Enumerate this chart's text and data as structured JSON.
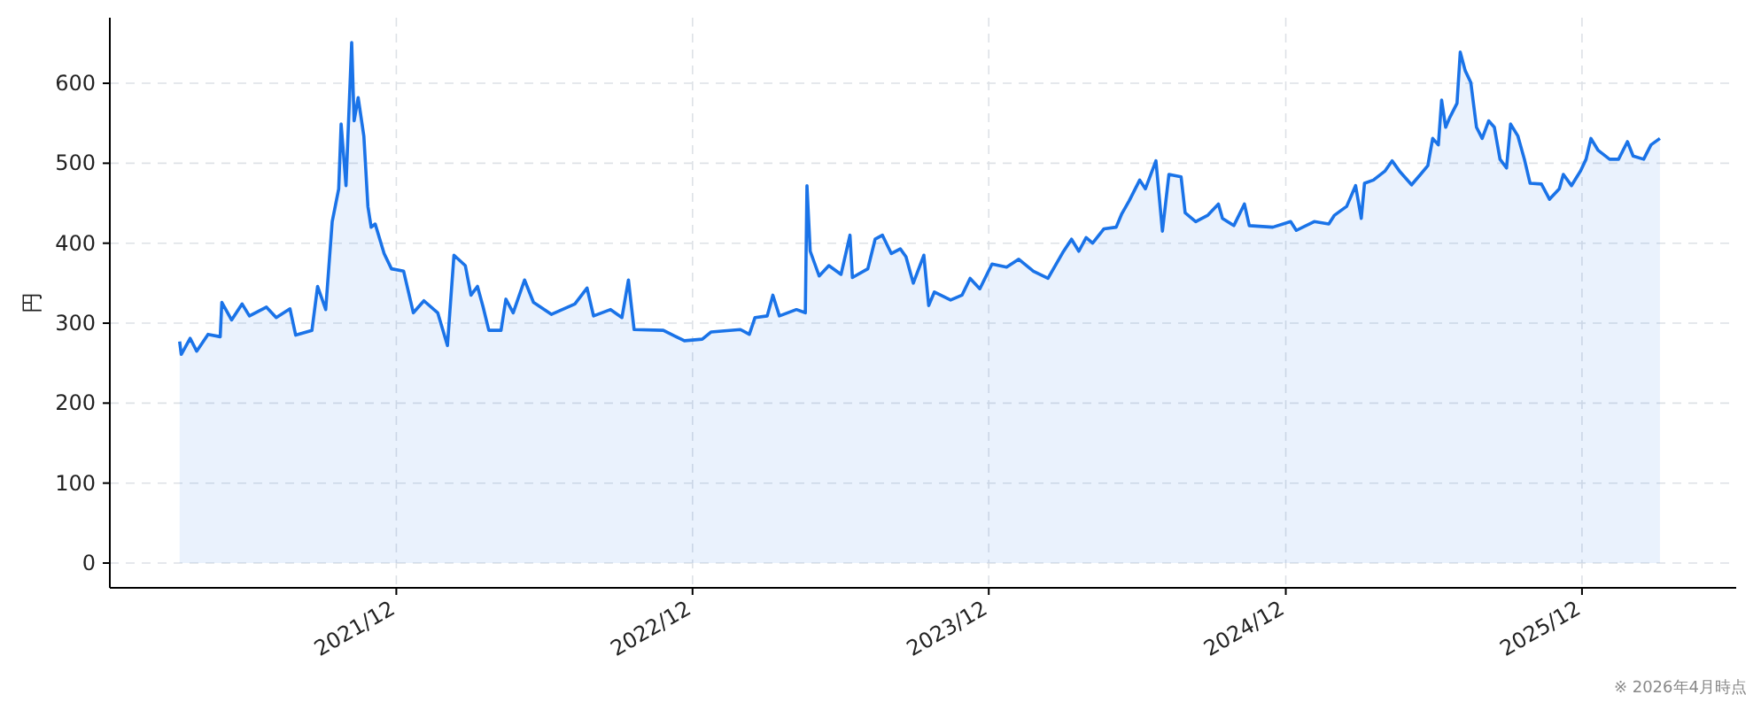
{
  "chart_data": {
    "type": "area",
    "ylabel": "円",
    "annotations": [
      "※ 2026年4月時点"
    ],
    "x": [
      "2021-03-09",
      "2021-03-11",
      "2021-03-22",
      "2021-03-30",
      "2021-04-13",
      "2021-04-28",
      "2021-04-30",
      "2021-05-12",
      "2021-05-25",
      "2021-06-03",
      "2021-06-24",
      "2021-07-06",
      "2021-07-23",
      "2021-07-30",
      "2021-08-19",
      "2021-08-26",
      "2021-09-05",
      "2021-09-13",
      "2021-09-21",
      "2021-09-24",
      "2021-09-30",
      "2021-10-07",
      "2021-10-10",
      "2021-10-15",
      "2021-10-22",
      "2021-10-27",
      "2021-10-31",
      "2021-11-05",
      "2021-11-16",
      "2021-11-25",
      "2021-12-10",
      "2021-12-22",
      "2022-01-04",
      "2022-01-21",
      "2022-02-02",
      "2022-02-10",
      "2022-02-24",
      "2022-03-03",
      "2022-03-11",
      "2022-03-18",
      "2022-03-25",
      "2022-04-09",
      "2022-04-15",
      "2022-04-24",
      "2022-05-08",
      "2022-05-19",
      "2022-06-10",
      "2022-07-09",
      "2022-07-24",
      "2022-08-01",
      "2022-08-22",
      "2022-09-05",
      "2022-09-13",
      "2022-09-20",
      "2022-10-26",
      "2022-11-21",
      "2022-12-13",
      "2022-12-24",
      "2023-01-29",
      "2023-02-09",
      "2023-02-16",
      "2023-03-03",
      "2023-03-10",
      "2023-03-18",
      "2023-04-08",
      "2023-04-19",
      "2023-04-21",
      "2023-04-25",
      "2023-05-06",
      "2023-05-18",
      "2023-06-02",
      "2023-06-13",
      "2023-06-16",
      "2023-07-05",
      "2023-07-14",
      "2023-07-23",
      "2023-08-03",
      "2023-08-14",
      "2023-08-21",
      "2023-08-30",
      "2023-09-12",
      "2023-09-18",
      "2023-09-25",
      "2023-10-15",
      "2023-10-29",
      "2023-11-08",
      "2023-11-20",
      "2023-12-05",
      "2023-12-23",
      "2024-01-07",
      "2024-01-25",
      "2024-02-12",
      "2024-03-01",
      "2024-03-12",
      "2024-03-21",
      "2024-03-30",
      "2024-04-07",
      "2024-04-21",
      "2024-05-06",
      "2024-05-13",
      "2024-05-22",
      "2024-06-04",
      "2024-06-11",
      "2024-06-24",
      "2024-07-02",
      "2024-07-10",
      "2024-07-25",
      "2024-07-30",
      "2024-08-12",
      "2024-08-27",
      "2024-09-09",
      "2024-09-14",
      "2024-09-28",
      "2024-10-11",
      "2024-10-17",
      "2024-11-15",
      "2024-12-07",
      "2024-12-14",
      "2025-01-05",
      "2025-01-23",
      "2025-01-30",
      "2025-02-14",
      "2025-02-25",
      "2025-03-04",
      "2025-03-08",
      "2025-03-19",
      "2025-04-02",
      "2025-04-11",
      "2025-04-21",
      "2025-05-05",
      "2025-05-16",
      "2025-05-25",
      "2025-05-31",
      "2025-06-07",
      "2025-06-11",
      "2025-06-16",
      "2025-06-21",
      "2025-06-30",
      "2025-07-04",
      "2025-07-10",
      "2025-07-17",
      "2025-07-24",
      "2025-07-31",
      "2025-08-08",
      "2025-08-15",
      "2025-08-22",
      "2025-08-30",
      "2025-09-04",
      "2025-09-13",
      "2025-09-21",
      "2025-09-28",
      "2025-10-12",
      "2025-10-22",
      "2025-11-03",
      "2025-11-08",
      "2025-11-18",
      "2025-11-29",
      "2025-12-06",
      "2025-12-12",
      "2025-12-21",
      "2026-01-04",
      "2026-01-15",
      "2026-01-26",
      "2026-02-02",
      "2026-02-15",
      "2026-02-24",
      "2026-03-07"
    ],
    "series": [
      {
        "color": "#1a73e8",
        "values": [
          277,
          261,
          281,
          265,
          286,
          283,
          326,
          304,
          324,
          309,
          320,
          307,
          318,
          285,
          291,
          346,
          317,
          427,
          468,
          549,
          472,
          651,
          553,
          582,
          534,
          446,
          420,
          424,
          387,
          368,
          365,
          313,
          328,
          313,
          272,
          385,
          372,
          335,
          346,
          320,
          291,
          291,
          330,
          313,
          354,
          326,
          311,
          324,
          344,
          309,
          317,
          307,
          354,
          292,
          291,
          278,
          280,
          289,
          292,
          286,
          307,
          309,
          335,
          309,
          317,
          313,
          472,
          390,
          359,
          372,
          361,
          410,
          357,
          368,
          405,
          410,
          387,
          393,
          383,
          350,
          385,
          322,
          339,
          329,
          335,
          356,
          343,
          374,
          370,
          380,
          365,
          356,
          388,
          405,
          390,
          407,
          400,
          418,
          420,
          437,
          453,
          479,
          468,
          503,
          415,
          486,
          483,
          438,
          427,
          435,
          449,
          431,
          422,
          449,
          422,
          420,
          427,
          416,
          427,
          424,
          435,
          446,
          472,
          431,
          475,
          479,
          490,
          503,
          489,
          473,
          486,
          497,
          531,
          523,
          579,
          545,
          557,
          575,
          639,
          616,
          601,
          545,
          531,
          553,
          545,
          505,
          494,
          549,
          534,
          505,
          475,
          474,
          455,
          468,
          486,
          472,
          490,
          505,
          531,
          516,
          505,
          505,
          527,
          509,
          505,
          523,
          531
        ]
      }
    ],
    "xlim": [
      "2020-12-13",
      "2026-06-09"
    ],
    "xticks": [
      {
        "value": "2021-12-01",
        "label": "2021/12"
      },
      {
        "value": "2022-12-01",
        "label": "2022/12"
      },
      {
        "value": "2023-12-01",
        "label": "2023/12"
      },
      {
        "value": "2024-12-01",
        "label": "2024/12"
      },
      {
        "value": "2025-12-01",
        "label": "2025/12"
      }
    ],
    "ylim": [
      -31,
      682
    ],
    "yticks": [
      0,
      100,
      200,
      300,
      400,
      500,
      600
    ],
    "grid": true
  }
}
